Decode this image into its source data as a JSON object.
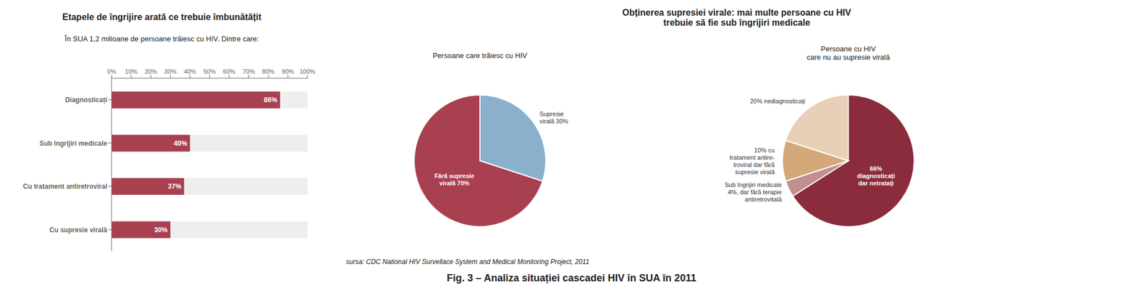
{
  "title": "Fig. 3 – Analiza situației cascadei HIV în SUA în 2011",
  "chart_data": [
    {
      "type": "bar",
      "title": "Etapele de îngrijire arată ce trebuie îmbunătățit",
      "subtitle": "În SUA 1,2 milioane de persoane trăiesc cu HIV. Dintre care:",
      "orientation": "horizontal",
      "categories": [
        "Diagnosticați",
        "Sub îngrijiri medicale",
        "Cu tratament antiretroviral",
        "Cu supresie virală"
      ],
      "values": [
        86,
        40,
        37,
        30
      ],
      "value_labels": [
        "86%",
        "40%",
        "37%",
        "30%"
      ],
      "data_labels": true,
      "color": "#a84050",
      "xlim": [
        0,
        100
      ],
      "xticks": [
        {
          "value": 0,
          "label": "0%"
        },
        {
          "value": 10,
          "label": "10%"
        },
        {
          "value": 20,
          "label": "20%"
        },
        {
          "value": 30,
          "label": "30%"
        },
        {
          "value": 40,
          "label": "40%"
        },
        {
          "value": 50,
          "label": "50%"
        },
        {
          "value": 60,
          "label": "60%"
        },
        {
          "value": 70,
          "label": "70%"
        },
        {
          "value": 80,
          "label": "80%"
        },
        {
          "value": 90,
          "label": "90%"
        },
        {
          "value": 100,
          "label": "100%"
        }
      ],
      "grid": false
    },
    {
      "type": "pie",
      "title": "Persoane care trăiesc cu HIV",
      "annotations": [
        "Obținerea supresiei virale: mai multe persoane cu HIV\ntrebuie să fie sub îngrijiri medicale",
        "sursa: CDC National HIV Survellace System and Medical Monitoring Project, 2011"
      ],
      "values": [
        30,
        70
      ],
      "value_labels": [
        "Supresie\nvirală 30%",
        "Fără supresie\nvirală 70%"
      ],
      "colors": [
        "#8ab0cc",
        "#a84050"
      ],
      "data_labels": true
    },
    {
      "type": "pie",
      "title": "Persoane cu HIV\ncare nu au supresie virală",
      "values": [
        66,
        4,
        10,
        20
      ],
      "value_labels": [
        "66%\ndiagnosticați\ndar netratați",
        "Sub îngrijiri medicale\n4%, dar fără terapie\nantiretrovitală",
        "10% cu\ntratament antire-\ntroviral dar fără\nsupresie virală",
        "20% nediagnosticați"
      ],
      "colors": [
        "#8b2c3c",
        "#c09090",
        "#d4a878",
        "#e8d0b8"
      ],
      "data_labels": true
    }
  ]
}
